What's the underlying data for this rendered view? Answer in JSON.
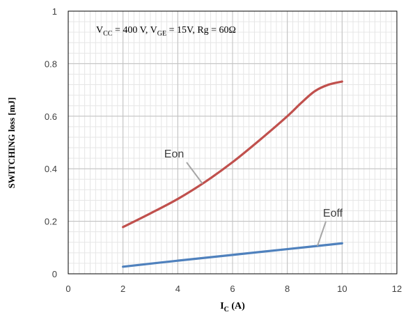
{
  "chart_data": {
    "type": "line",
    "title": "",
    "xlabel_main": "I",
    "xlabel_sub": "C",
    "xlabel_unit": " (A)",
    "ylabel": "SWITCHING loss [mJ]",
    "xlim": [
      0,
      12
    ],
    "ylim": [
      0,
      1
    ],
    "x_ticks": [
      0,
      2,
      4,
      6,
      8,
      10,
      12
    ],
    "y_ticks": [
      0,
      0.2,
      0.4,
      0.6,
      0.8,
      1
    ],
    "x_tick_labels": [
      "0",
      "2",
      "4",
      "6",
      "8",
      "10",
      "12"
    ],
    "y_tick_labels": [
      "0",
      "0.2",
      "0.4",
      "0.6",
      "0.8",
      "1"
    ],
    "grid": true,
    "annotation": {
      "vcc_label": "V",
      "vcc_sub": "CC",
      "vcc_value": " = 400 V, V",
      "vge_sub": "GE",
      "vge_value": " = 15V, Rg = 60Ω"
    },
    "series": [
      {
        "name": "Eon",
        "color": "#c0504d",
        "x": [
          2,
          3,
          4,
          5,
          6,
          7,
          8,
          8.5,
          9,
          9.5,
          10
        ],
        "y": [
          0.178,
          0.23,
          0.285,
          0.35,
          0.425,
          0.51,
          0.6,
          0.65,
          0.695,
          0.72,
          0.732
        ]
      },
      {
        "name": "Eoff",
        "color": "#4f81bd",
        "x": [
          2,
          4,
          6,
          8,
          10
        ],
        "y": [
          0.027,
          0.05,
          0.072,
          0.094,
          0.116
        ]
      }
    ]
  }
}
